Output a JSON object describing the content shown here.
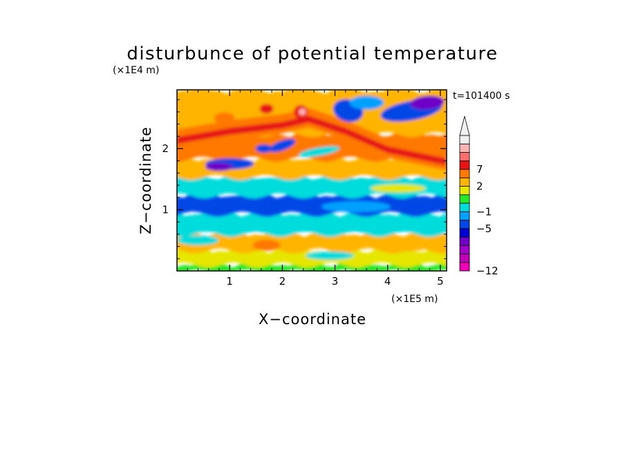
{
  "chart_data": {
    "type": "heatmap",
    "title": "disturbunce of potential temperature",
    "xlabel": "X−coordinate",
    "ylabel": "Z−coordinate",
    "x_unit": "(×1E5 m)",
    "y_unit": "(×1E4 m)",
    "time_label": "t=101400 s",
    "xlim": [
      0,
      5.12
    ],
    "ylim": [
      0,
      2.96
    ],
    "x_ticks": [
      1,
      2,
      3,
      4,
      5
    ],
    "y_ticks": [
      1,
      2
    ],
    "x_tick_labels": [
      "1",
      "2",
      "3",
      "4",
      "5"
    ],
    "y_tick_labels": [
      "1",
      "2"
    ],
    "colorbar": {
      "levels_low_to_high": [
        -12,
        -10,
        -8,
        -6,
        -5,
        -3,
        -1,
        0,
        1,
        2,
        4,
        7,
        8,
        9
      ],
      "colors_low_to_high": [
        "#f000b4",
        "#c000b4",
        "#a000c8",
        "#6e00c8",
        "#0000d2",
        "#0046e6",
        "#00a0ff",
        "#00dcdc",
        "#28e628",
        "#e6e600",
        "#ffb400",
        "#ff7800",
        "#e61414",
        "#ff6e6e",
        "#ffb4b4",
        "#f0f0f0"
      ],
      "labeled_values": [
        -12,
        -5,
        -1,
        2,
        7
      ],
      "labels": [
        "−12",
        "−5",
        "−1",
        "2",
        "7"
      ],
      "extend": "max"
    },
    "field_bands": [
      {
        "z_range": [
          0.0,
          0.12
        ],
        "dominant_value": 0.5,
        "color_class": "green"
      },
      {
        "z_range": [
          0.12,
          0.35
        ],
        "dominant_value": 1.5,
        "color_class": "green/yellow"
      },
      {
        "z_range": [
          0.35,
          0.62
        ],
        "dominant_value": 2.5,
        "color_class": "yellow"
      },
      {
        "z_range": [
          0.62,
          0.95
        ],
        "dominant_value": -0.5,
        "color_class": "cyan"
      },
      {
        "z_range": [
          0.95,
          1.25
        ],
        "dominant_value": -4,
        "color_class": "blue"
      },
      {
        "z_range": [
          1.25,
          1.55
        ],
        "dominant_value": -0.5,
        "color_class": "cyan"
      },
      {
        "z_range": [
          1.55,
          1.85
        ],
        "dominant_value": 2,
        "color_class": "yellow/green"
      },
      {
        "z_range": [
          1.85,
          2.25
        ],
        "dominant_value": 4,
        "color_class": "orange"
      },
      {
        "z_range": [
          2.25,
          2.96
        ],
        "dominant_value": 3,
        "color_class": "yellow/orange"
      }
    ],
    "features": [
      {
        "desc": "negative blob",
        "x": 4.55,
        "z": 2.6,
        "value": -5
      },
      {
        "desc": "negative blob",
        "x": 3.3,
        "z": 2.65,
        "value": -5
      },
      {
        "desc": "negative blob",
        "x": 1.0,
        "z": 1.75,
        "value": -5
      },
      {
        "desc": "negative blob",
        "x": 2.0,
        "z": 2.05,
        "value": -5
      },
      {
        "desc": "positive max",
        "x": 2.38,
        "z": 2.58,
        "value": 8
      },
      {
        "desc": "positive max",
        "x": 1.72,
        "z": 2.65,
        "value": 7
      },
      {
        "desc": "positive ridge (diagonal)",
        "x": 3.8,
        "z": 2.1,
        "value": 7
      }
    ]
  }
}
